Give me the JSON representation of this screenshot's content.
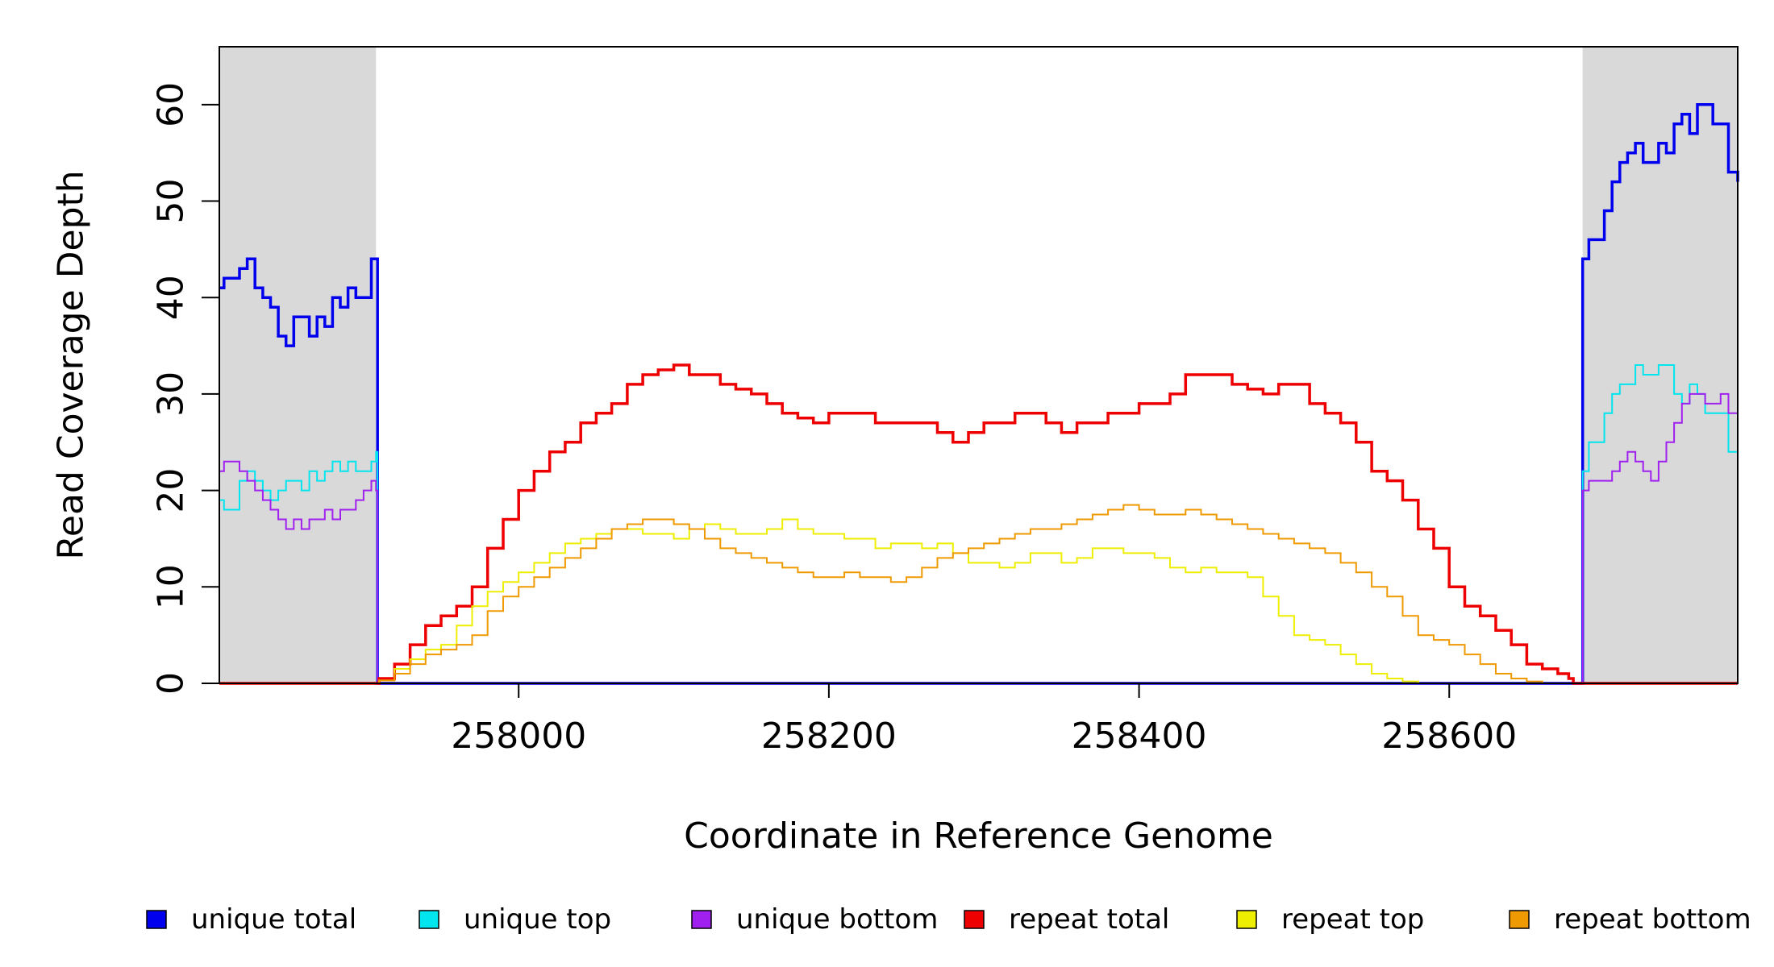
{
  "chart_data": {
    "type": "line",
    "xlabel": "Coordinate in Reference Genome",
    "ylabel": "Read Coverage Depth",
    "xlim": [
      257807,
      258786
    ],
    "ylim": [
      0,
      66
    ],
    "x_ticks": [
      258000,
      258200,
      258400,
      258600
    ],
    "x_tick_labels": [
      "258000",
      "258200",
      "258400",
      "258600"
    ],
    "y_ticks": [
      0,
      10,
      20,
      30,
      40,
      50,
      60
    ],
    "y_tick_labels": [
      "0",
      "10",
      "20",
      "30",
      "40",
      "50",
      "60"
    ],
    "shaded_regions": [
      {
        "x_start": 257807,
        "x_end": 257908,
        "color": "#d9d9d9"
      },
      {
        "x_start": 258686,
        "x_end": 258786,
        "color": "#d9d9d9"
      }
    ],
    "legend_position": "bottom",
    "series": [
      {
        "name": "unique total",
        "color": "#0000ee",
        "stroke_width": 3.5,
        "x": [
          257807,
          257810,
          257815,
          257820,
          257825,
          257830,
          257835,
          257840,
          257845,
          257850,
          257855,
          257860,
          257865,
          257870,
          257875,
          257880,
          257885,
          257890,
          257895,
          257900,
          257905,
          257908,
          257909,
          258685,
          258686,
          258690,
          258695,
          258700,
          258705,
          258710,
          258715,
          258720,
          258725,
          258730,
          258735,
          258740,
          258745,
          258750,
          258755,
          258760,
          258765,
          258770,
          258775,
          258780,
          258786
        ],
        "values": [
          41,
          42,
          42,
          43,
          44,
          41,
          40,
          39,
          36,
          35,
          38,
          38,
          36,
          38,
          37,
          40,
          39,
          41,
          40,
          40,
          44,
          44,
          0,
          0,
          44,
          46,
          46,
          49,
          52,
          54,
          55,
          56,
          54,
          54,
          56,
          55,
          58,
          59,
          57,
          60,
          60,
          58,
          58,
          53,
          52
        ]
      },
      {
        "name": "unique top",
        "color": "#00e5ee",
        "stroke_width": 2,
        "x": [
          257807,
          257810,
          257815,
          257820,
          257825,
          257830,
          257835,
          257840,
          257845,
          257850,
          257855,
          257860,
          257865,
          257870,
          257875,
          257880,
          257885,
          257890,
          257895,
          257900,
          257905,
          257908,
          257909,
          258685,
          258686,
          258690,
          258695,
          258700,
          258705,
          258710,
          258715,
          258720,
          258725,
          258730,
          258735,
          258740,
          258745,
          258750,
          258755,
          258760,
          258765,
          258770,
          258775,
          258780,
          258786
        ],
        "values": [
          19,
          18,
          18,
          21,
          22,
          21,
          20,
          19,
          20,
          21,
          21,
          20,
          22,
          21,
          22,
          23,
          22,
          23,
          22,
          22,
          23,
          24,
          0,
          0,
          22,
          25,
          25,
          28,
          30,
          31,
          31,
          33,
          32,
          32,
          33,
          33,
          30,
          29,
          31,
          30,
          28,
          28,
          28,
          24,
          24
        ]
      },
      {
        "name": "unique bottom",
        "color": "#a020f0",
        "stroke_width": 2,
        "x": [
          257807,
          257810,
          257815,
          257820,
          257825,
          257830,
          257835,
          257840,
          257845,
          257850,
          257855,
          257860,
          257865,
          257870,
          257875,
          257880,
          257885,
          257890,
          257895,
          257900,
          257905,
          257908,
          257909,
          258685,
          258686,
          258690,
          258695,
          258700,
          258705,
          258710,
          258715,
          258720,
          258725,
          258730,
          258735,
          258740,
          258745,
          258750,
          258755,
          258760,
          258765,
          258770,
          258775,
          258780,
          258786
        ],
        "values": [
          22,
          23,
          23,
          22,
          21,
          20,
          19,
          18,
          17,
          16,
          17,
          16,
          17,
          17,
          18,
          17,
          18,
          18,
          19,
          20,
          21,
          20,
          0,
          0,
          20,
          21,
          21,
          21,
          22,
          23,
          24,
          23,
          22,
          21,
          23,
          25,
          27,
          29,
          30,
          30,
          29,
          29,
          30,
          28,
          28
        ]
      },
      {
        "name": "repeat total",
        "color": "#ee0000",
        "stroke_width": 3.5,
        "x": [
          257807,
          257908,
          257910,
          257920,
          257930,
          257940,
          257950,
          257960,
          257970,
          257980,
          257990,
          258000,
          258010,
          258020,
          258030,
          258040,
          258050,
          258060,
          258070,
          258080,
          258090,
          258100,
          258110,
          258120,
          258130,
          258140,
          258150,
          258160,
          258170,
          258180,
          258190,
          258200,
          258210,
          258220,
          258230,
          258240,
          258250,
          258260,
          258270,
          258280,
          258290,
          258300,
          258310,
          258320,
          258330,
          258340,
          258350,
          258360,
          258370,
          258380,
          258390,
          258400,
          258410,
          258420,
          258430,
          258440,
          258450,
          258460,
          258470,
          258480,
          258490,
          258500,
          258510,
          258520,
          258530,
          258540,
          258550,
          258560,
          258570,
          258580,
          258590,
          258600,
          258610,
          258620,
          258630,
          258640,
          258650,
          258660,
          258670,
          258677,
          258680,
          258786
        ],
        "values": [
          0,
          0,
          0.5,
          2,
          4,
          6,
          7,
          8,
          10,
          14,
          17,
          20,
          22,
          24,
          25,
          27,
          28,
          29,
          31,
          32,
          32.5,
          33,
          32,
          32,
          31,
          30.5,
          30,
          29,
          28,
          27.5,
          27,
          28,
          28,
          28,
          27,
          27,
          27,
          27,
          26,
          25,
          26,
          27,
          27,
          28,
          28,
          27,
          26,
          27,
          27,
          28,
          28,
          29,
          29,
          30,
          32,
          32,
          32,
          31,
          30.5,
          30,
          31,
          31,
          29,
          28,
          27,
          25,
          22,
          21,
          19,
          16,
          14,
          10,
          8,
          7,
          5.5,
          4,
          2,
          1.5,
          1,
          0.5,
          0,
          0
        ]
      },
      {
        "name": "repeat top",
        "color": "#eeee00",
        "stroke_width": 2,
        "x": [
          257807,
          257908,
          257910,
          257920,
          257930,
          257940,
          257950,
          257960,
          257970,
          257980,
          257990,
          258000,
          258010,
          258020,
          258030,
          258040,
          258050,
          258060,
          258070,
          258080,
          258090,
          258100,
          258110,
          258120,
          258130,
          258140,
          258150,
          258160,
          258170,
          258180,
          258190,
          258200,
          258210,
          258220,
          258230,
          258240,
          258250,
          258260,
          258270,
          258280,
          258290,
          258300,
          258310,
          258320,
          258330,
          258340,
          258350,
          258360,
          258370,
          258380,
          258390,
          258400,
          258410,
          258420,
          258430,
          258440,
          258450,
          258460,
          258470,
          258480,
          258490,
          258500,
          258510,
          258520,
          258530,
          258540,
          258550,
          258560,
          258570,
          258580,
          258590,
          258600,
          258610,
          258620,
          258630,
          258640,
          258650,
          258660,
          258670,
          258677,
          258680,
          258786
        ],
        "values": [
          0,
          0,
          0.3,
          1.5,
          2.5,
          3.5,
          4,
          6,
          8,
          9.5,
          10.5,
          11.5,
          12.5,
          13.5,
          14.5,
          15,
          15.5,
          16,
          16,
          15.5,
          15.5,
          15,
          16,
          16.5,
          16,
          15.5,
          15.5,
          16,
          17,
          16,
          15.5,
          15.5,
          15,
          15,
          14,
          14.5,
          14.5,
          14,
          14.5,
          13.5,
          12.5,
          12.5,
          12,
          12.5,
          13.5,
          13.5,
          12.5,
          13,
          14,
          14,
          13.5,
          13.5,
          13,
          12,
          11.5,
          12,
          11.5,
          11.5,
          11,
          9,
          7,
          5,
          4.5,
          4,
          3,
          2,
          1,
          0.5,
          0.2,
          0,
          0,
          0,
          0,
          0,
          0,
          0,
          0,
          0,
          0,
          0,
          0,
          0
        ]
      },
      {
        "name": "repeat bottom",
        "color": "#ee9a00",
        "stroke_width": 2,
        "x": [
          257807,
          257908,
          257910,
          257920,
          257930,
          257940,
          257950,
          257960,
          257970,
          257980,
          257990,
          258000,
          258010,
          258020,
          258030,
          258040,
          258050,
          258060,
          258070,
          258080,
          258090,
          258100,
          258110,
          258120,
          258130,
          258140,
          258150,
          258160,
          258170,
          258180,
          258190,
          258200,
          258210,
          258220,
          258230,
          258240,
          258250,
          258260,
          258270,
          258280,
          258290,
          258300,
          258310,
          258320,
          258330,
          258340,
          258350,
          258360,
          258370,
          258380,
          258390,
          258400,
          258410,
          258420,
          258430,
          258440,
          258450,
          258460,
          258470,
          258480,
          258490,
          258500,
          258510,
          258520,
          258530,
          258540,
          258550,
          258560,
          258570,
          258580,
          258590,
          258600,
          258610,
          258620,
          258630,
          258640,
          258650,
          258660,
          258670,
          258677,
          258680,
          258786
        ],
        "values": [
          0,
          0,
          0.3,
          1,
          2,
          3,
          3.5,
          4,
          5,
          7.5,
          9,
          10,
          11,
          12,
          13,
          14,
          15,
          16,
          16.5,
          17,
          17,
          16.5,
          16,
          15,
          14,
          13.5,
          13,
          12.5,
          12,
          11.5,
          11,
          11,
          11.5,
          11,
          11,
          10.5,
          11,
          12,
          13,
          13.5,
          14,
          14.5,
          15,
          15.5,
          16,
          16,
          16.5,
          17,
          17.5,
          18,
          18.5,
          18,
          17.5,
          17.5,
          18,
          17.5,
          17,
          16.5,
          16,
          15.5,
          15,
          14.5,
          14,
          13.5,
          12.5,
          11.5,
          10,
          9,
          7,
          5,
          4.5,
          4,
          3,
          2,
          1,
          0.5,
          0.2,
          0,
          0,
          0,
          0,
          0
        ]
      }
    ]
  }
}
